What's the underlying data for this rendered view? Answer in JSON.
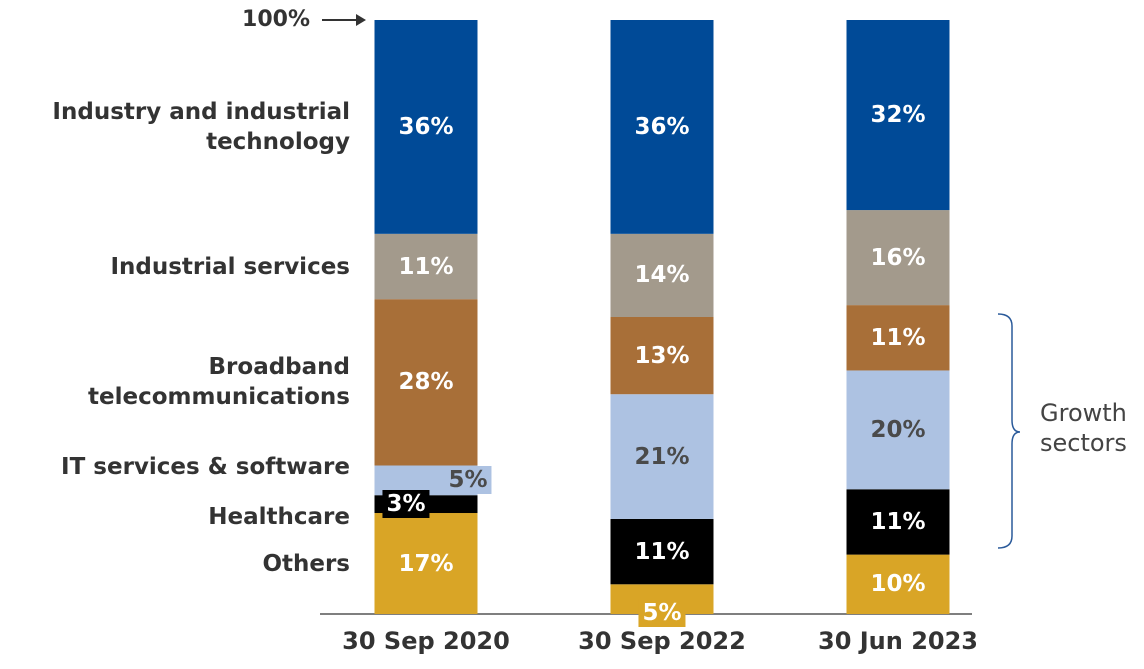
{
  "chart_data": {
    "type": "stacked_bar",
    "categories": [
      "30 Sep 2020",
      "30 Sep 2022",
      "30 Jun 2023"
    ],
    "ylim": [
      0,
      100
    ],
    "series": [
      {
        "name": "Others",
        "color": "#d9a526",
        "values": [
          17,
          5,
          10
        ],
        "value_labels": [
          "17%",
          "5%",
          "10%"
        ]
      },
      {
        "name": "Healthcare",
        "color": "#000000",
        "values": [
          3,
          11,
          11
        ],
        "value_labels": [
          "3%",
          "11%",
          "11%"
        ]
      },
      {
        "name": "IT services & software",
        "color": "#adc2e2",
        "values": [
          5,
          21,
          20
        ],
        "value_labels": [
          "5%",
          "21%",
          "20%"
        ]
      },
      {
        "name": "Broadband telecommunications",
        "color": "#a86f38",
        "values": [
          28,
          13,
          11
        ],
        "value_labels": [
          "28%",
          "13%",
          "11%"
        ]
      },
      {
        "name": "Industrial services",
        "color": "#a39a8c",
        "values": [
          11,
          14,
          16
        ],
        "value_labels": [
          "11%",
          "14%",
          "16%"
        ]
      },
      {
        "name": "Industry and industrial technology",
        "color": "#004a97",
        "values": [
          36,
          36,
          32
        ],
        "value_labels": [
          "36%",
          "36%",
          "32%"
        ]
      }
    ],
    "annotations": [
      "100%",
      "Growth sectors"
    ]
  }
}
